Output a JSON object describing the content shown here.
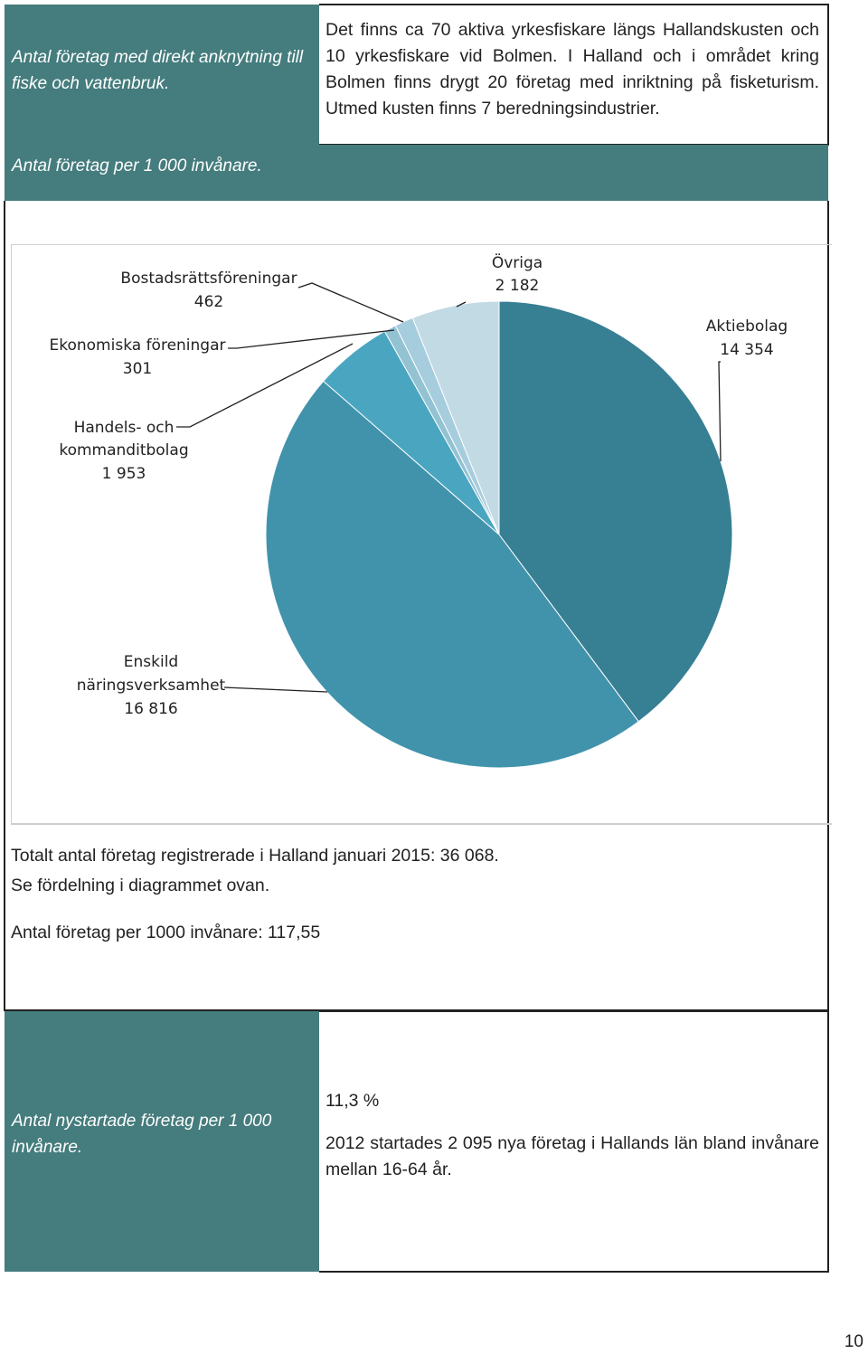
{
  "row1": {
    "label": "Antal företag med direkt anknytning till fiske och vattenbruk.",
    "text": "Det finns ca 70 aktiva yrkesfiskare längs Hallandskusten och 10 yrkesfiskare vid Bolmen. I Halland och i området kring Bolmen finns drygt 20 företag med inriktning på fisketurism. Utmed kusten finns 7 beredningsindustrier."
  },
  "row2": {
    "label": "Antal företag per 1 000 invånare.",
    "totals_line1": "Totalt antal företag registrerade i Halland januari 2015: 36 068.",
    "totals_line2": "Se fördelning i diagrammet ovan.",
    "per_capita": "Antal företag per 1000 invånare: 117,55"
  },
  "chart_data": {
    "type": "pie",
    "title": "",
    "slices": [
      {
        "name": "Aktiebolag",
        "value": 14354,
        "value_label": "14 354",
        "color": "#377f93"
      },
      {
        "name": "Enskild näringsverksamhet",
        "value": 16816,
        "value_label": "16 816",
        "color": "#4193ac"
      },
      {
        "name": "Handels- och kommanditbolag",
        "value": 1953,
        "value_label": "1 953",
        "color": "#4aa6c0"
      },
      {
        "name": "Ekonomiska föreningar",
        "value": 301,
        "value_label": "301",
        "color": "#93c2d3"
      },
      {
        "name": "Bostadsrättsföreningar",
        "value": 462,
        "value_label": "462",
        "color": "#a6cddd"
      },
      {
        "name": "Övriga",
        "value": 2182,
        "value_label": "2 182",
        "color": "#c2dae4"
      }
    ]
  },
  "row3": {
    "label": "Antal nystartade företag per 1 000 invånare.",
    "value": "11,3 %",
    "text": "2012 startades 2 095 nya företag i Hallands län bland invånare mellan 16-64 år."
  },
  "page_number": "10"
}
